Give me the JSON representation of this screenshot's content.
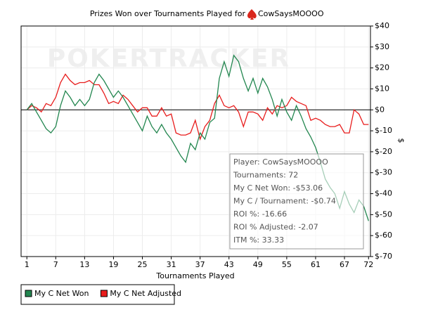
{
  "chart_data": {
    "type": "line",
    "title": "Prizes Won over Tournaments Played for",
    "subject": "CowSaysMOOOO",
    "watermark": "POKERTRACKER",
    "x_label": "Tournaments Played",
    "y_label": "$",
    "x": [
      1,
      2,
      3,
      4,
      5,
      6,
      7,
      8,
      9,
      10,
      11,
      12,
      13,
      14,
      15,
      16,
      17,
      18,
      19,
      20,
      21,
      22,
      23,
      24,
      25,
      26,
      27,
      28,
      29,
      30,
      31,
      32,
      33,
      34,
      35,
      36,
      37,
      38,
      39,
      40,
      41,
      42,
      43,
      44,
      45,
      46,
      47,
      48,
      49,
      50,
      51,
      52,
      53,
      54,
      55,
      56,
      57,
      58,
      59,
      60,
      61,
      62,
      63,
      64,
      65,
      66,
      67,
      68,
      69,
      70,
      71,
      72
    ],
    "series": [
      {
        "name": "My C Net Won",
        "color": "#22864f",
        "values": [
          0,
          3,
          -1,
          -5,
          -9,
          -11,
          -8,
          2,
          9,
          6,
          2,
          5,
          2,
          5,
          13,
          17,
          14,
          10,
          6,
          9,
          6,
          2,
          -2,
          -6,
          -10,
          -3,
          -8,
          -11,
          -7,
          -11,
          -14,
          -18,
          -22,
          -25,
          -16,
          -19,
          -11,
          -14,
          -6,
          -4,
          15,
          23,
          16,
          26,
          23,
          15,
          9,
          15,
          8,
          15,
          11,
          5,
          -3,
          5,
          -1,
          -5,
          2,
          -3,
          -9,
          -13,
          -18,
          -25,
          -33,
          -37,
          -40,
          -47,
          -39,
          -45,
          -49,
          -43,
          -46,
          -53
        ]
      },
      {
        "name": "My C Net Adjusted",
        "color": "#e81c1c",
        "values": [
          0,
          2,
          1,
          -1,
          3,
          2,
          6,
          13,
          17,
          14,
          12,
          13,
          13,
          14,
          12,
          12,
          8,
          3,
          4,
          3,
          7,
          5,
          2,
          -1,
          1,
          1,
          -3,
          -3,
          1,
          -3,
          -2,
          -11,
          -12,
          -12,
          -11,
          -5,
          -14,
          -8,
          -5,
          3,
          7,
          2,
          1,
          2,
          -1,
          -8,
          -1,
          -1,
          -2,
          -5,
          1,
          -2,
          2,
          1,
          2,
          6,
          4,
          3,
          2,
          -5,
          -4,
          -5,
          -7,
          -8,
          -8,
          -7,
          -11,
          -11,
          0,
          -2,
          -7,
          -7
        ]
      }
    ],
    "xlim": [
      -0.2,
      72.4
    ],
    "xticks": [
      1,
      7,
      13,
      19,
      25,
      31,
      37,
      43,
      49,
      55,
      61,
      67,
      72
    ],
    "ylim": [
      -70,
      40
    ],
    "yticks": [
      {
        "value": 40,
        "label": "$40"
      },
      {
        "value": 30,
        "label": "$30"
      },
      {
        "value": 20,
        "label": "$20"
      },
      {
        "value": 10,
        "label": "$10"
      },
      {
        "value": 0,
        "label": "$0"
      },
      {
        "value": -10,
        "label": "$-10"
      },
      {
        "value": -20,
        "label": "$-20"
      },
      {
        "value": -30,
        "label": "$-30"
      },
      {
        "value": -40,
        "label": "$-40"
      },
      {
        "value": -50,
        "label": "$-50"
      },
      {
        "value": -60,
        "label": "$-60"
      },
      {
        "value": -70,
        "label": "$-70"
      }
    ],
    "grid": true,
    "annotations": [
      "Player: CowSaysMOOOO",
      "Tournaments: 72",
      "My C Net Won: -$53.06",
      "My C / Tournament: -$0.74",
      "ROI %: -16.66",
      "ROI % Adjusted: -2.07",
      "ITM %: 33.33"
    ]
  }
}
